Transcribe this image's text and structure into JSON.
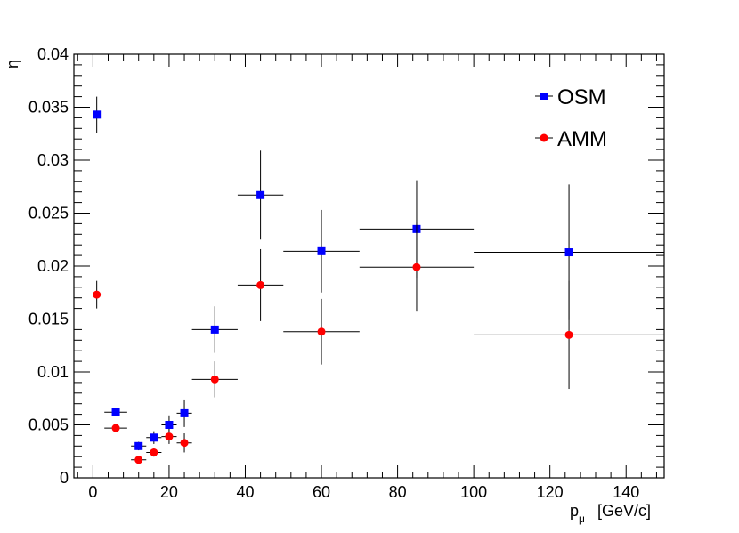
{
  "chart_data": {
    "type": "scatter",
    "title": "",
    "xlabel": "p",
    "xlabel_subscript": "μ",
    "xlabel_unit": "[GeV/c]",
    "ylabel": "η",
    "xlim": [
      -5,
      150
    ],
    "ylim": [
      0,
      0.04
    ],
    "x_ticks": [
      0,
      20,
      40,
      60,
      80,
      100,
      120,
      140
    ],
    "y_ticks": [
      0,
      0.005,
      0.01,
      0.015,
      0.02,
      0.025,
      0.03,
      0.035,
      0.04
    ],
    "y_tick_labels": [
      "0",
      "0.005",
      "0.01",
      "0.015",
      "0.02",
      "0.025",
      "0.03",
      "0.035",
      "0.04"
    ],
    "x_tick_labels": [
      "0",
      "20",
      "40",
      "60",
      "80",
      "100",
      "120",
      "140"
    ],
    "legend_position": "top-right",
    "series": [
      {
        "name": "OSM",
        "marker": "square",
        "color": "#0000ff",
        "points": [
          {
            "x": 1,
            "xerr": 0,
            "y": 0.0343,
            "yerr": 0.0017
          },
          {
            "x": 6,
            "xerr": 3,
            "y": 0.0062,
            "yerr": 0.0004
          },
          {
            "x": 12,
            "xerr": 2,
            "y": 0.003,
            "yerr": 0.0004
          },
          {
            "x": 16,
            "xerr": 2,
            "y": 0.0038,
            "yerr": 0.0006
          },
          {
            "x": 20,
            "xerr": 2,
            "y": 0.005,
            "yerr": 0.0009
          },
          {
            "x": 24,
            "xerr": 2,
            "y": 0.0061,
            "yerr": 0.0013
          },
          {
            "x": 32,
            "xerr": 6,
            "y": 0.014,
            "yerr": 0.0022
          },
          {
            "x": 44,
            "xerr": 6,
            "y": 0.0267,
            "yerr": 0.0042
          },
          {
            "x": 60,
            "xerr": 10,
            "y": 0.0214,
            "yerr": 0.0039
          },
          {
            "x": 85,
            "xerr": 15,
            "y": 0.0235,
            "yerr": 0.0046
          },
          {
            "x": 125,
            "xerr": 25,
            "y": 0.0213,
            "yerr": 0.0064
          }
        ]
      },
      {
        "name": "AMM",
        "marker": "circle",
        "color": "#ff0000",
        "points": [
          {
            "x": 1,
            "xerr": 0,
            "y": 0.0173,
            "yerr": 0.0013
          },
          {
            "x": 6,
            "xerr": 3,
            "y": 0.0047,
            "yerr": 0.0003
          },
          {
            "x": 12,
            "xerr": 2,
            "y": 0.0017,
            "yerr": 0.0002
          },
          {
            "x": 16,
            "xerr": 2,
            "y": 0.0024,
            "yerr": 0.0004
          },
          {
            "x": 20,
            "xerr": 2,
            "y": 0.0039,
            "yerr": 0.0007
          },
          {
            "x": 24,
            "xerr": 2,
            "y": 0.0033,
            "yerr": 0.0009
          },
          {
            "x": 32,
            "xerr": 6,
            "y": 0.0093,
            "yerr": 0.0017
          },
          {
            "x": 44,
            "xerr": 6,
            "y": 0.0182,
            "yerr": 0.0034
          },
          {
            "x": 60,
            "xerr": 10,
            "y": 0.0138,
            "yerr": 0.0031
          },
          {
            "x": 85,
            "xerr": 15,
            "y": 0.0199,
            "yerr": 0.0042
          },
          {
            "x": 125,
            "xerr": 25,
            "y": 0.0135,
            "yerr": 0.0051
          }
        ]
      }
    ]
  }
}
